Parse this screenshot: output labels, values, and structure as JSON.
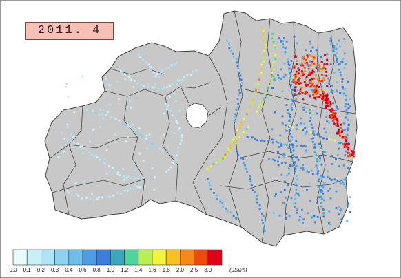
{
  "title": "2011. 4",
  "legend": {
    "ticks": [
      "0.0",
      "0.1",
      "0.2",
      "0.3",
      "0.4",
      "0.6",
      "0.8",
      "1.0",
      "1.2",
      "1.4",
      "1.6",
      "1.8",
      "2.0",
      "2.5",
      "3.0"
    ],
    "unit": "(μSv/h)",
    "colors": [
      "#e8fbfb",
      "#c8f0f7",
      "#aee3f3",
      "#8fd2f0",
      "#6fbdeb",
      "#4d9de2",
      "#3a7fdc",
      "#3aa9c0",
      "#4fd49a",
      "#b8f050",
      "#f4f43a",
      "#f7c21e",
      "#f58a16",
      "#ef4a0e",
      "#e0001a"
    ]
  },
  "map": {
    "region": "Fukushima Prefecture",
    "land_color": "#c8c8c8",
    "border_color": "#404040",
    "lake_color": "#ffffff"
  }
}
